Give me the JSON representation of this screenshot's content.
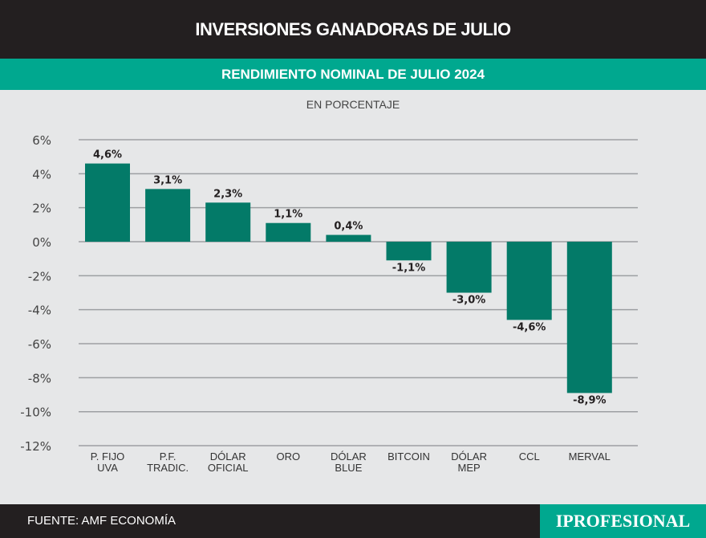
{
  "header": {
    "title": "INVERSIONES GANADORAS DE JULIO",
    "subtitle": "RENDIMIENTO NOMINAL DE JULIO 2024"
  },
  "footer": {
    "source": "FUENTE: AMF ECONOMÍA",
    "logo": "IPROFESIONAL"
  },
  "colors": {
    "bar": "#037a68",
    "accent": "#00a88f",
    "dark": "#231f20"
  },
  "chart_data": {
    "type": "bar",
    "title": "RENDIMIENTO NOMINAL DE JULIO 2024",
    "ylabel": "EN PORCENTAJE",
    "categories": [
      [
        "P. FIJO",
        "UVA"
      ],
      [
        "P.F.",
        "TRADIC."
      ],
      [
        "DÓLAR",
        "OFICIAL"
      ],
      [
        "ORO"
      ],
      [
        "DÓLAR",
        "BLUE"
      ],
      [
        "BITCOIN"
      ],
      [
        "DÓLAR",
        "MEP"
      ],
      [
        "CCL"
      ],
      [
        "MERVAL"
      ]
    ],
    "values": [
      4.6,
      3.1,
      2.3,
      1.1,
      0.4,
      -1.1,
      -3.0,
      -4.6,
      -8.9
    ],
    "data_labels": [
      "4,6%",
      "3,1%",
      "2,3%",
      "1,1%",
      "0,4%",
      "-1,1%",
      "-3,0%",
      "-4,6%",
      "-8,9%"
    ],
    "yticks": [
      "6%",
      "4%",
      "2%",
      "0%",
      "-2%",
      "-4%",
      "-6%",
      "-8%",
      "-10%",
      "-12%"
    ],
    "ylim": [
      -12,
      6
    ],
    "grid": true
  }
}
